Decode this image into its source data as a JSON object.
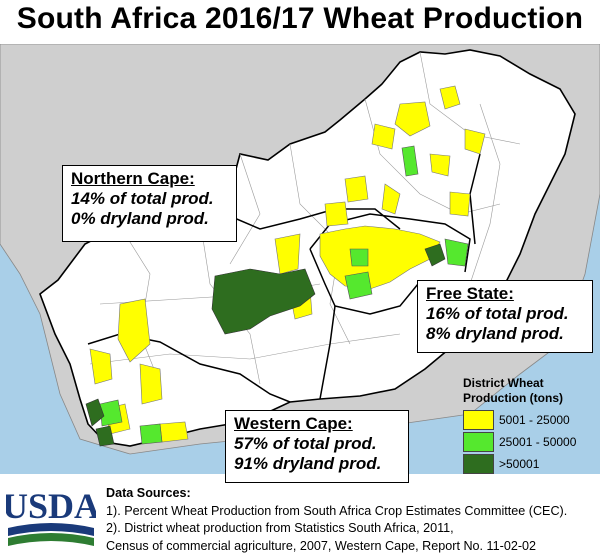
{
  "title": "South Africa 2016/17 Wheat Production",
  "callouts": {
    "northern_cape": {
      "heading": "Northern Cape:",
      "line1": "14% of total prod.",
      "line2": "0% dryland prod."
    },
    "free_state": {
      "heading": "Free State:",
      "line1": "16% of total prod.",
      "line2": "8% dryland prod."
    },
    "western_cape": {
      "heading": "Western Cape:",
      "line1": "57% of total prod.",
      "line2": "91% dryland prod."
    }
  },
  "legend": {
    "title_line1": "District Wheat",
    "title_line2": "Production (tons)",
    "items": [
      {
        "label": "5001 - 25000",
        "color": "#ffff00"
      },
      {
        "label": "25001 - 50000",
        "color": "#55e82e"
      },
      {
        "label": ">50001",
        "color": "#2e6d1f"
      }
    ]
  },
  "logo_text": "USDA",
  "sources": {
    "heading": "Data Sources:",
    "line1": "1). Percent Wheat Production from South Africa Crop Estimates Committee (CEC).",
    "line2": "2). District wheat production from Statistics South Africa, 2011,",
    "line3": "Census of commercial agriculture, 2007, Western Cape, Report No. 11-02-02"
  },
  "colors": {
    "ocean": "#a9cfe8",
    "neighbor": "#cfcfcf",
    "land": "#ffffff",
    "border": "#000000"
  }
}
